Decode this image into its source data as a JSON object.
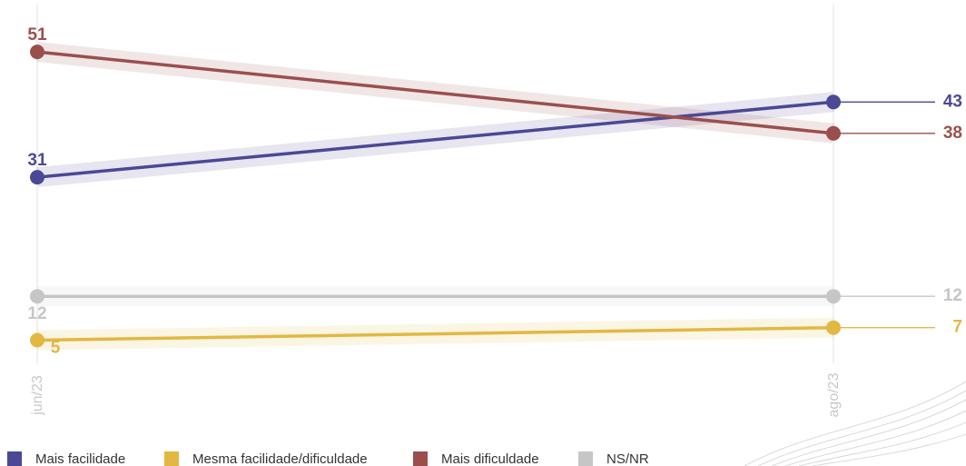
{
  "chart_data": {
    "type": "line",
    "categories": [
      "jun/23",
      "ago/23"
    ],
    "series": [
      {
        "name": "Mais facilidade",
        "color": "#4b4895",
        "values": [
          31,
          43
        ]
      },
      {
        "name": "Mesma facilidade/dificuldade",
        "color": "#e2b843",
        "values": [
          5,
          7
        ]
      },
      {
        "name": "Mais dificuldade",
        "color": "#9b4f4d",
        "values": [
          51,
          38
        ]
      },
      {
        "name": "NS/NR",
        "color": "#c6c6c6",
        "values": [
          12,
          12
        ]
      }
    ],
    "ylim": [
      0,
      55
    ],
    "legend": "bottom-left"
  }
}
